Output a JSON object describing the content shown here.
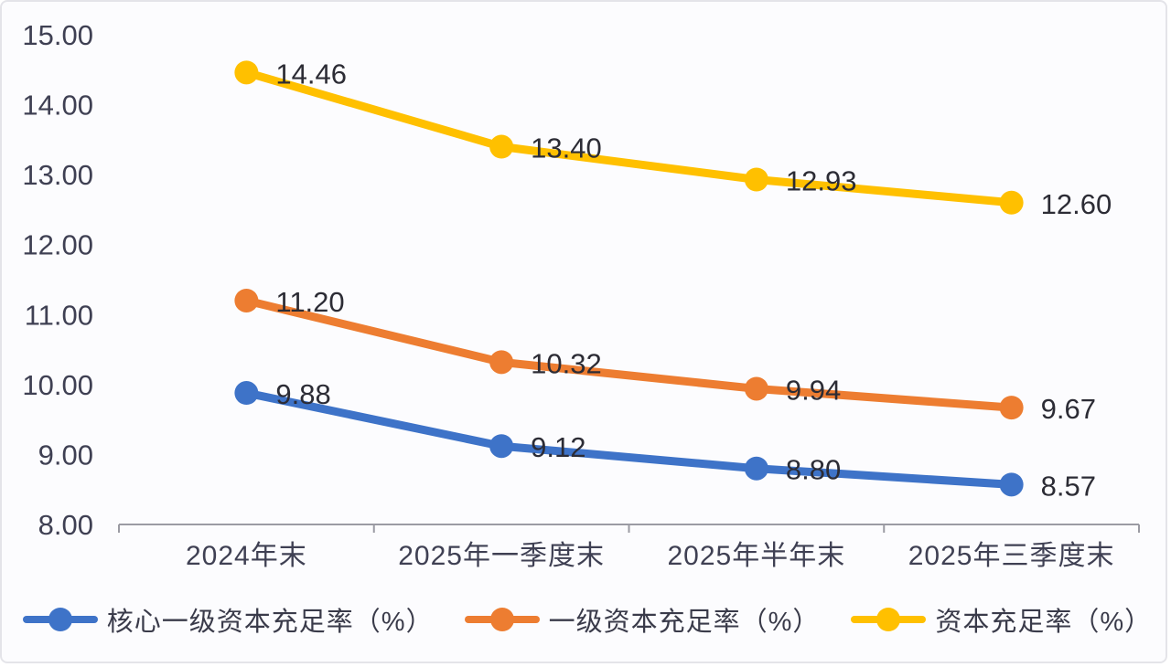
{
  "chart_data": {
    "type": "line",
    "categories": [
      "2024年末",
      "2025年一季度末",
      "2025年半年末",
      "2025年三季度末"
    ],
    "series": [
      {
        "name": "核心一级资本充足率（%）",
        "color": "#3E73C8",
        "values": [
          9.88,
          9.12,
          8.8,
          8.57
        ],
        "point_labels": [
          "9.88",
          "9.12",
          "8.80",
          "8.57"
        ]
      },
      {
        "name": "一级资本充足率（%）",
        "color": "#ED7D31",
        "values": [
          11.2,
          10.32,
          9.94,
          9.67
        ],
        "point_labels": [
          "11.20",
          "10.32",
          "9.94",
          "9.67"
        ]
      },
      {
        "name": "资本充足率（%）",
        "color": "#FFC000",
        "values": [
          14.46,
          13.4,
          12.93,
          12.6
        ],
        "point_labels": [
          "14.46",
          "13.40",
          "12.93",
          "12.60"
        ]
      }
    ],
    "y_axis": {
      "min": 8,
      "max": 15,
      "step": 1,
      "tick_labels": [
        "15.00",
        "14.00",
        "13.00",
        "12.00",
        "11.00",
        "10.00",
        "9.00",
        "8.00"
      ]
    },
    "xlabel": "",
    "ylabel": "",
    "title": "",
    "grid": false,
    "legend_position": "bottom",
    "colors": {
      "axis_line": "#9b9ba3",
      "tick_text": "#3f4053",
      "point_label_text": "#2c2c35"
    }
  }
}
